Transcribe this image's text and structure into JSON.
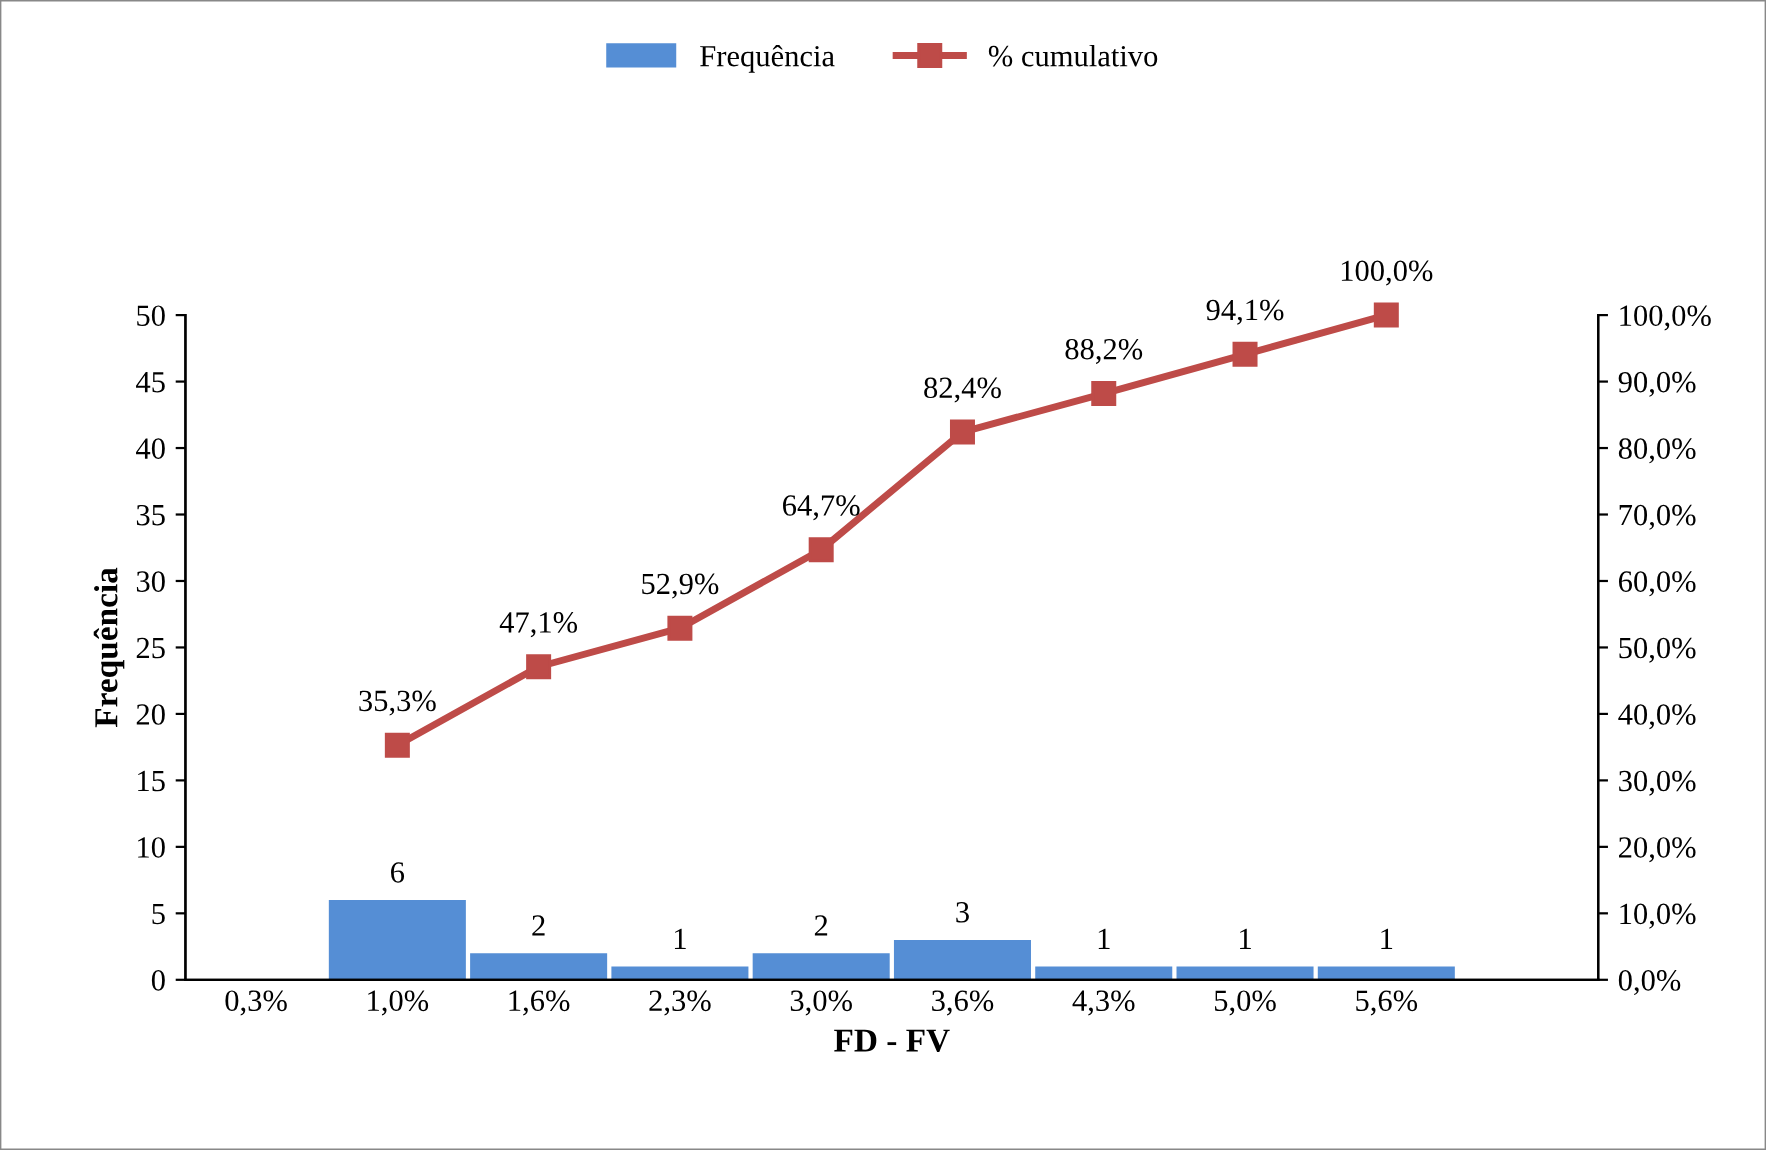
{
  "chart_data": {
    "type": "bar",
    "xlabel": "FD - FV",
    "ylabel": "Frequência",
    "categories": [
      "0,3%",
      "1,0%",
      "1,6%",
      "2,3%",
      "3,0%",
      "3,6%",
      "4,3%",
      "5,0%",
      "5,6%",
      null
    ],
    "series": [
      {
        "name": "Frequência",
        "color": "#558ed5",
        "values": [
          null,
          6,
          2,
          1,
          2,
          3,
          1,
          1,
          1,
          null
        ],
        "value_labels": [
          null,
          "6",
          "2",
          "1",
          "2",
          "3",
          "1",
          "1",
          "1",
          null
        ]
      },
      {
        "name": "% cumulativo",
        "type": "line",
        "axis": "y2",
        "color": "#be4b48",
        "marker": "square",
        "values": [
          null,
          35.3,
          47.1,
          52.9,
          64.7,
          82.4,
          88.2,
          94.1,
          100.0,
          null
        ],
        "value_labels": [
          null,
          "35,3%",
          "47,1%",
          "52,9%",
          "64,7%",
          "82,4%",
          "88,2%",
          "94,1%",
          "100,0%",
          null
        ]
      }
    ],
    "ylim": [
      0,
      50
    ],
    "yticks": [
      0,
      5,
      10,
      15,
      20,
      25,
      30,
      35,
      40,
      45,
      50
    ],
    "y2lim": [
      0,
      100
    ],
    "y2ticks": [
      {
        "value": 0,
        "label": "0,0%"
      },
      {
        "value": 10,
        "label": "10,0%"
      },
      {
        "value": 20,
        "label": "20,0%"
      },
      {
        "value": 30,
        "label": "30,0%"
      },
      {
        "value": 40,
        "label": "40,0%"
      },
      {
        "value": 50,
        "label": "50,0%"
      },
      {
        "value": 60,
        "label": "60,0%"
      },
      {
        "value": 70,
        "label": "70,0%"
      },
      {
        "value": 80,
        "label": "80,0%"
      },
      {
        "value": 90,
        "label": "90,0%"
      },
      {
        "value": 100,
        "label": "100,0%"
      }
    ],
    "grid": false,
    "legend": "top"
  }
}
